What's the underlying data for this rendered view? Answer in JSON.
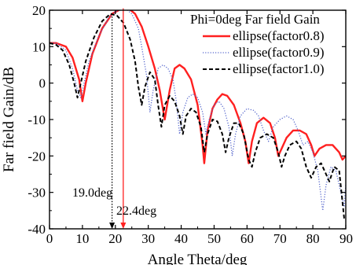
{
  "chart_data": {
    "type": "line",
    "xlabel": "Angle Theta/deg",
    "ylabel": "Far field Gain/dB",
    "xlim": [
      0,
      90
    ],
    "ylim": [
      -40,
      20
    ],
    "xticks": [
      0,
      10,
      20,
      30,
      40,
      50,
      60,
      70,
      80,
      90
    ],
    "yticks": [
      -40,
      -30,
      -20,
      -10,
      0,
      10,
      20
    ],
    "legend_title": "Phi=0deg Far field Gain",
    "legend_position": "top-right",
    "grid": false,
    "series": [
      {
        "name": "ellipse(factor0.8)",
        "color": "#ff2020",
        "style": "solid",
        "points": [
          [
            0,
            11
          ],
          [
            2,
            11
          ],
          [
            5,
            10
          ],
          [
            7,
            7
          ],
          [
            9,
            1
          ],
          [
            10,
            -5
          ],
          [
            11,
            0
          ],
          [
            13,
            8
          ],
          [
            16,
            15
          ],
          [
            19,
            19
          ],
          [
            22,
            20.5
          ],
          [
            24,
            20.5
          ],
          [
            26,
            19
          ],
          [
            28,
            15.5
          ],
          [
            30,
            10
          ],
          [
            32,
            4
          ],
          [
            33.5,
            -2
          ],
          [
            35,
            -10
          ],
          [
            36.5,
            -2
          ],
          [
            38,
            4
          ],
          [
            39.5,
            5
          ],
          [
            41,
            4
          ],
          [
            43,
            1
          ],
          [
            45,
            -6
          ],
          [
            46.5,
            -17
          ],
          [
            47,
            -22
          ],
          [
            48,
            -13
          ],
          [
            49.5,
            -7
          ],
          [
            51,
            -4.5
          ],
          [
            52.5,
            -3
          ],
          [
            54,
            -3.5
          ],
          [
            56,
            -6
          ],
          [
            58,
            -11
          ],
          [
            59.5,
            -16
          ],
          [
            60.5,
            -22
          ],
          [
            61.5,
            -16
          ],
          [
            63,
            -11
          ],
          [
            65,
            -9.5
          ],
          [
            67,
            -11
          ],
          [
            68.5,
            -15
          ],
          [
            69.5,
            -20
          ],
          [
            70.5,
            -18
          ],
          [
            72,
            -15
          ],
          [
            74,
            -13
          ],
          [
            76,
            -13
          ],
          [
            78,
            -14
          ],
          [
            79.5,
            -17
          ],
          [
            80.5,
            -20
          ],
          [
            82,
            -18
          ],
          [
            84,
            -17
          ],
          [
            86,
            -17
          ],
          [
            88,
            -19
          ],
          [
            89,
            -21
          ],
          [
            90,
            -20
          ]
        ]
      },
      {
        "name": "ellipse(factor0.9)",
        "color": "#5566cc",
        "style": "dotted",
        "points": [
          [
            0,
            11
          ],
          [
            2,
            11
          ],
          [
            5,
            9
          ],
          [
            7,
            4
          ],
          [
            8.5,
            -2
          ],
          [
            9.5,
            -4
          ],
          [
            10.5,
            0
          ],
          [
            12,
            6
          ],
          [
            15,
            13
          ],
          [
            18,
            18
          ],
          [
            21,
            20.3
          ],
          [
            23,
            20.5
          ],
          [
            25,
            19
          ],
          [
            27,
            15
          ],
          [
            28,
            10
          ],
          [
            29.5,
            2
          ],
          [
            30.5,
            -8
          ],
          [
            31.5,
            -2
          ],
          [
            33,
            4
          ],
          [
            34.5,
            5
          ],
          [
            36,
            4
          ],
          [
            37.5,
            1
          ],
          [
            38.5,
            -5
          ],
          [
            39.5,
            -14
          ],
          [
            40.5,
            -8
          ],
          [
            42,
            -4
          ],
          [
            43.5,
            -3
          ],
          [
            45,
            -4
          ],
          [
            46.5,
            -8
          ],
          [
            47.5,
            -14
          ],
          [
            48.5,
            -10
          ],
          [
            50,
            -6
          ],
          [
            51.5,
            -5
          ],
          [
            53,
            -7
          ],
          [
            54.5,
            -12
          ],
          [
            55.5,
            -20
          ],
          [
            56.5,
            -14
          ],
          [
            58,
            -9
          ],
          [
            60,
            -7
          ],
          [
            62,
            -7.5
          ],
          [
            63.5,
            -9
          ],
          [
            65,
            -13
          ],
          [
            66.5,
            -16
          ],
          [
            68,
            -12
          ],
          [
            70,
            -10
          ],
          [
            72,
            -9
          ],
          [
            74,
            -10
          ],
          [
            75.5,
            -13
          ],
          [
            77,
            -17
          ],
          [
            78.5,
            -16
          ],
          [
            80,
            -19
          ],
          [
            81.5,
            -24
          ],
          [
            83,
            -35
          ],
          [
            84,
            -28
          ],
          [
            85.5,
            -23
          ],
          [
            87,
            -24
          ],
          [
            88.5,
            -30
          ],
          [
            89.5,
            -34
          ],
          [
            90,
            -28
          ]
        ]
      },
      {
        "name": "ellipse(factor1.0)",
        "color": "#000000",
        "style": "dashed",
        "points": [
          [
            0,
            11
          ],
          [
            2,
            10.5
          ],
          [
            4,
            9
          ],
          [
            6,
            5
          ],
          [
            7.5,
            0
          ],
          [
            8.5,
            -4
          ],
          [
            9.5,
            0
          ],
          [
            11,
            6
          ],
          [
            13.5,
            12.5
          ],
          [
            16,
            17
          ],
          [
            18.5,
            19
          ],
          [
            20.5,
            18.5
          ],
          [
            22.5,
            16.5
          ],
          [
            24.5,
            12
          ],
          [
            26,
            6
          ],
          [
            27,
            -1
          ],
          [
            28,
            -6
          ],
          [
            29,
            -1
          ],
          [
            30.5,
            3
          ],
          [
            32,
            1
          ],
          [
            33,
            -6
          ],
          [
            34,
            -12
          ],
          [
            35,
            -6
          ],
          [
            36.5,
            -3.5
          ],
          [
            38,
            -5
          ],
          [
            39.5,
            -9
          ],
          [
            40.5,
            -14
          ],
          [
            41.5,
            -9
          ],
          [
            43,
            -7
          ],
          [
            44.5,
            -8
          ],
          [
            46,
            -12
          ],
          [
            47,
            -19
          ],
          [
            48,
            -14
          ],
          [
            49.5,
            -10
          ],
          [
            51,
            -10.5
          ],
          [
            52.5,
            -14
          ],
          [
            53.5,
            -19
          ],
          [
            54.5,
            -15
          ],
          [
            56,
            -11
          ],
          [
            57.5,
            -11
          ],
          [
            59,
            -14
          ],
          [
            60.5,
            -21
          ],
          [
            61.5,
            -23
          ],
          [
            62.5,
            -19
          ],
          [
            64,
            -15
          ],
          [
            66,
            -14
          ],
          [
            68,
            -15
          ],
          [
            69.5,
            -19
          ],
          [
            70.5,
            -23
          ],
          [
            71.5,
            -20
          ],
          [
            73,
            -17
          ],
          [
            75,
            -16
          ],
          [
            76.5,
            -18
          ],
          [
            78,
            -23
          ],
          [
            79.5,
            -26
          ],
          [
            81,
            -23
          ],
          [
            82.5,
            -22
          ],
          [
            84,
            -25
          ],
          [
            85,
            -27
          ],
          [
            86.5,
            -23
          ],
          [
            88,
            -24
          ],
          [
            89.5,
            -37
          ],
          [
            90,
            -37
          ]
        ]
      }
    ],
    "annotations": [
      {
        "text": "19.0deg",
        "x": 19.0,
        "color": "#000000",
        "style": "dotted"
      },
      {
        "text": "22.4deg",
        "x": 22.4,
        "color": "#ff2020",
        "style": "solid"
      }
    ]
  }
}
